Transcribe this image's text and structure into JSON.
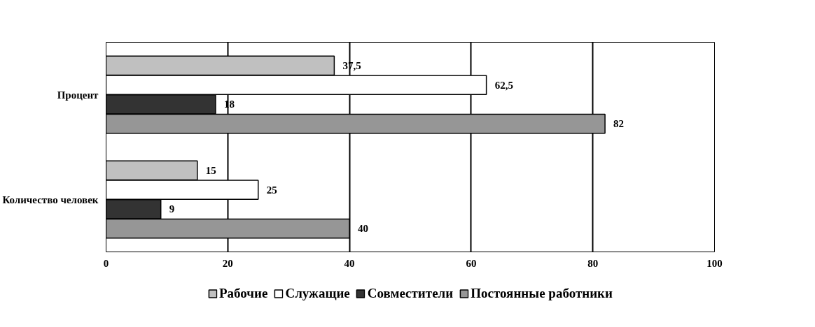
{
  "chart_data": {
    "type": "bar",
    "orientation": "horizontal",
    "categories": [
      "Процент",
      "Количество человек"
    ],
    "series": [
      {
        "name": "Рабочие",
        "color": "#c0c0c0",
        "values": [
          37.5,
          15
        ],
        "value_labels": [
          "37,5",
          "15"
        ]
      },
      {
        "name": "Служащие",
        "color": "#ffffff",
        "values": [
          62.5,
          25
        ],
        "value_labels": [
          "62,5",
          "25"
        ]
      },
      {
        "name": "Совместители",
        "color": "#333333",
        "values": [
          18,
          9
        ],
        "value_labels": [
          "18",
          "9"
        ]
      },
      {
        "name": "Постоянные работники",
        "color": "#969696",
        "values": [
          82,
          40
        ],
        "value_labels": [
          "82",
          "40"
        ]
      }
    ],
    "xlim": [
      0,
      100
    ],
    "xticks": [
      0,
      20,
      40,
      60,
      80,
      100
    ],
    "grid": "x",
    "legend": "bottom"
  }
}
